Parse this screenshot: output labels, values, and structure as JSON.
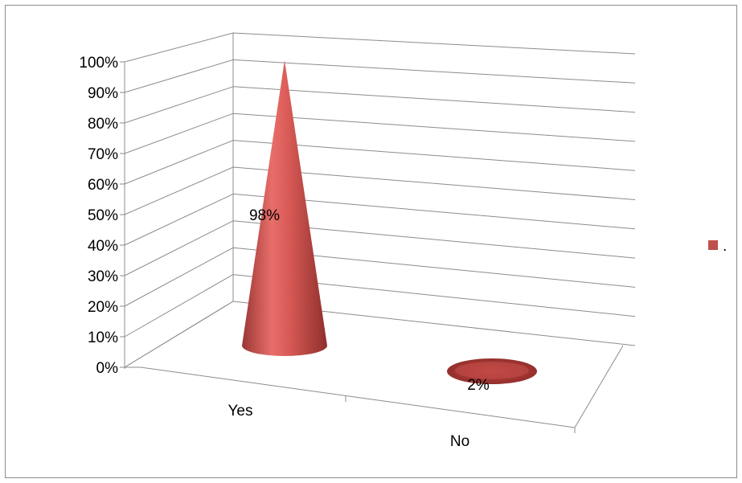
{
  "chart_data": {
    "type": "bar",
    "style": "3d-cone",
    "categories": [
      "Yes",
      "No"
    ],
    "series": [
      {
        "name": ".",
        "values": [
          98,
          2
        ],
        "color": "#c0504d"
      }
    ],
    "data_labels": [
      "98%",
      "2%"
    ],
    "ylim": [
      0,
      100
    ],
    "y_tick_labels": [
      "0%",
      "10%",
      "20%",
      "30%",
      "40%",
      "50%",
      "60%",
      "70%",
      "80%",
      "90%",
      "100%"
    ],
    "grid": true,
    "legend_position": "right",
    "title": "",
    "xlabel": "",
    "ylabel": ""
  }
}
